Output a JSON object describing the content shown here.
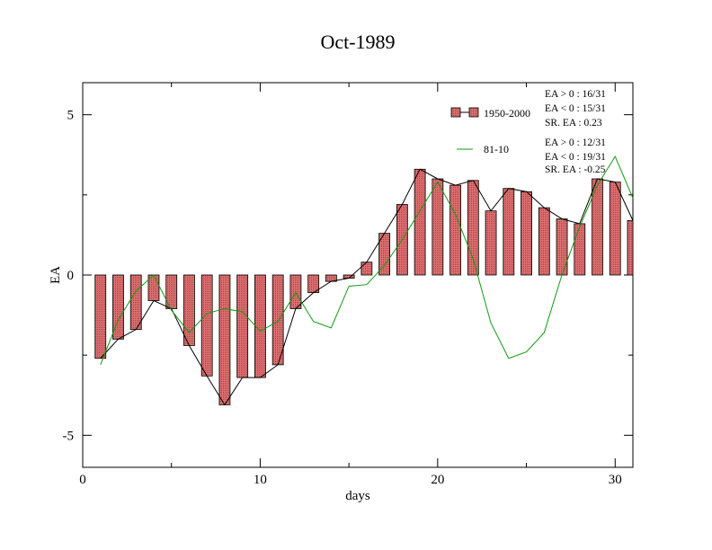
{
  "chart_data": {
    "type": "bar",
    "title": "Oct-1989",
    "xlabel": "days",
    "ylabel": "EA",
    "xlim": [
      0,
      31
    ],
    "ylim": [
      -6,
      6
    ],
    "x_ticks": [
      0,
      10,
      20,
      30
    ],
    "y_ticks": [
      -5,
      0,
      5
    ],
    "x": [
      1,
      2,
      3,
      4,
      5,
      6,
      7,
      8,
      9,
      10,
      11,
      12,
      13,
      14,
      15,
      16,
      17,
      18,
      19,
      20,
      21,
      22,
      23,
      24,
      25,
      26,
      27,
      28,
      29,
      30,
      31
    ],
    "series": [
      {
        "name": "1950-2000",
        "kind": "bar+line",
        "values": [
          -2.6,
          -2.0,
          -1.7,
          -0.8,
          -1.05,
          -2.2,
          -3.15,
          -4.05,
          -3.2,
          -3.2,
          -2.8,
          -1.05,
          -0.55,
          -0.2,
          -0.1,
          0.4,
          1.3,
          2.2,
          3.3,
          3.0,
          2.8,
          2.95,
          2.0,
          2.7,
          2.6,
          2.1,
          1.75,
          1.6,
          3.0,
          2.9,
          1.7
        ]
      },
      {
        "name": "81-10",
        "kind": "line",
        "values": [
          -2.8,
          -1.4,
          -0.5,
          0.0,
          -1.1,
          -1.8,
          -1.2,
          -1.05,
          -1.15,
          -1.75,
          -1.45,
          -0.55,
          -1.45,
          -1.65,
          -0.35,
          -0.3,
          0.3,
          1.1,
          2.0,
          2.9,
          1.9,
          0.5,
          -1.5,
          -2.6,
          -2.4,
          -1.8,
          0.0,
          1.5,
          2.8,
          3.7,
          2.4
        ]
      }
    ],
    "legend_position": "top-right",
    "stats": [
      [
        "EA > 0 : 16/31",
        "EA < 0 : 15/31",
        "SR. EA :  0.23"
      ],
      [
        "EA > 0 : 12/31",
        "EA < 0 : 19/31",
        "SR. EA : -0.25"
      ]
    ],
    "colors": {
      "bar_fill": "#e08080",
      "bar_stroke": "#000000",
      "line_1950": "#000000",
      "line_8110": "#119911",
      "frame": "#000000"
    },
    "grid": false
  }
}
